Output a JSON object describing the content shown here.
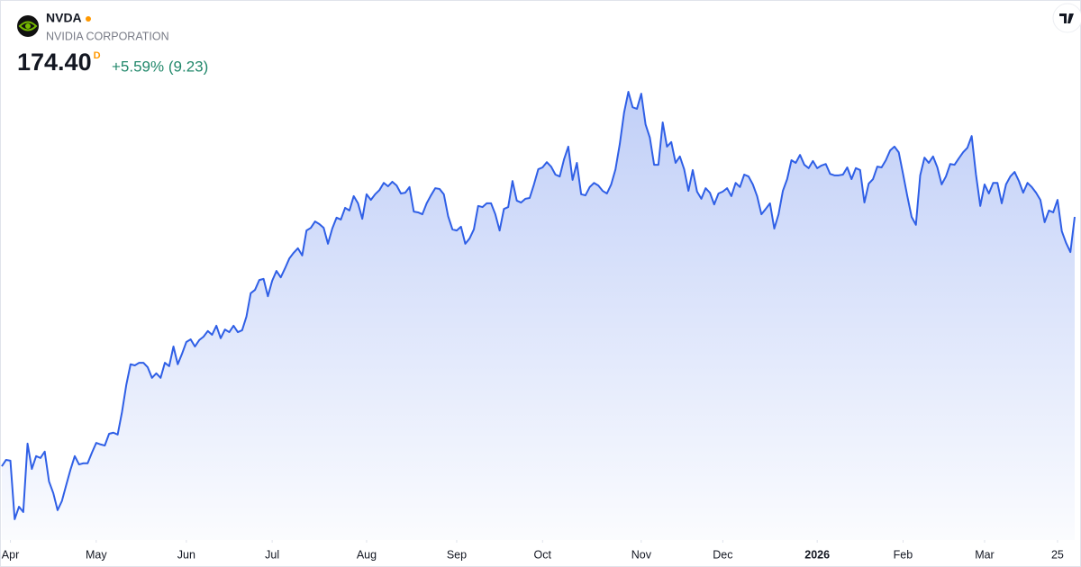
{
  "header": {
    "symbol": "NVDA",
    "name": "NVIDIA CORPORATION",
    "price": "174.40",
    "interval": "D",
    "change": "+5.59% (9.23)"
  },
  "chart_data": {
    "type": "area",
    "color": "#2f5fe6",
    "change_color": "#22886b",
    "values": [
      108.4,
      110.1,
      109.9,
      94.4,
      97.7,
      96.3,
      114.4,
      107.7,
      111.1,
      110.6,
      112.3,
      104.4,
      101.3,
      96.8,
      99.2,
      103.4,
      107.5,
      111.1,
      108.9,
      109.2,
      109.2,
      112.0,
      114.6,
      114.2,
      113.9,
      117.0,
      117.3,
      116.8,
      122.7,
      129.9,
      135.4,
      135.1,
      135.8,
      135.8,
      134.6,
      131.8,
      133.0,
      131.8,
      135.8,
      134.9,
      140.1,
      135.4,
      138.2,
      141.3,
      142.0,
      140.1,
      141.8,
      142.7,
      144.2,
      143.2,
      145.6,
      142.3,
      144.6,
      143.9,
      145.6,
      143.9,
      144.4,
      148.0,
      154.2,
      155.1,
      157.7,
      158.0,
      153.4,
      157.5,
      160.1,
      158.4,
      160.8,
      163.4,
      164.9,
      166.1,
      164.2,
      170.8,
      171.5,
      173.2,
      172.5,
      171.5,
      167.3,
      171.3,
      174.2,
      173.7,
      176.8,
      176.1,
      179.9,
      178.0,
      173.9,
      180.4,
      178.9,
      180.4,
      181.5,
      183.4,
      182.5,
      183.7,
      182.7,
      180.6,
      180.8,
      182.3,
      175.8,
      175.6,
      175.1,
      178.0,
      180.1,
      182.0,
      181.8,
      180.4,
      174.6,
      171.1,
      170.8,
      171.8,
      167.3,
      168.7,
      171.1,
      177.3,
      177.0,
      178.0,
      178.0,
      175.1,
      170.8,
      176.5,
      177.0,
      183.9,
      178.7,
      178.2,
      179.2,
      179.4,
      183.0,
      187.0,
      187.5,
      188.9,
      187.7,
      185.6,
      185.1,
      189.6,
      193.0,
      184.2,
      188.7,
      180.4,
      180.1,
      182.3,
      183.4,
      182.7,
      181.3,
      180.6,
      183.0,
      187.0,
      193.7,
      202.0,
      207.5,
      203.4,
      203.0,
      207.0,
      198.9,
      195.4,
      188.2,
      188.2,
      199.4,
      193.0,
      194.2,
      188.7,
      190.4,
      187.0,
      181.3,
      186.8,
      181.1,
      179.2,
      182.0,
      180.8,
      177.7,
      180.6,
      181.1,
      182.0,
      179.9,
      183.4,
      182.3,
      185.6,
      185.1,
      183.0,
      179.9,
      175.1,
      176.5,
      178.0,
      171.3,
      175.1,
      181.3,
      184.4,
      189.4,
      188.7,
      190.8,
      188.2,
      187.3,
      189.2,
      187.3,
      188.0,
      188.4,
      185.8,
      185.4,
      185.4,
      185.6,
      187.5,
      184.4,
      187.3,
      186.8,
      178.2,
      183.2,
      184.4,
      187.7,
      187.5,
      189.4,
      192.0,
      193.0,
      191.5,
      185.8,
      179.9,
      174.4,
      172.3,
      185.4,
      190.1,
      188.7,
      190.4,
      187.5,
      183.0,
      185.1,
      188.4,
      188.2,
      189.9,
      191.5,
      192.7,
      195.8,
      185.6,
      177.3,
      183.0,
      180.6,
      183.4,
      183.4,
      178.0,
      183.0,
      185.1,
      186.3,
      183.9,
      180.8,
      183.4,
      182.3,
      180.8,
      178.9,
      173.0,
      176.1,
      175.6,
      178.9,
      170.6,
      167.5,
      165.1,
      174.4
    ],
    "xlim": [
      0,
      250
    ],
    "ylim": [
      88.9,
      231.8
    ],
    "xticks": [
      {
        "value": 2,
        "label": "Apr"
      },
      {
        "value": 22,
        "label": "May"
      },
      {
        "value": 43,
        "label": "Jun"
      },
      {
        "value": 63,
        "label": "Jul"
      },
      {
        "value": 85,
        "label": "Aug"
      },
      {
        "value": 106,
        "label": "Sep"
      },
      {
        "value": 126,
        "label": "Oct"
      },
      {
        "value": 149,
        "label": "Nov"
      },
      {
        "value": 168,
        "label": "Dec"
      },
      {
        "value": 190,
        "label": "2026",
        "bold": true
      },
      {
        "value": 210,
        "label": "Feb"
      },
      {
        "value": 229,
        "label": "Mar"
      },
      {
        "value": 246,
        "label": "25"
      }
    ]
  }
}
